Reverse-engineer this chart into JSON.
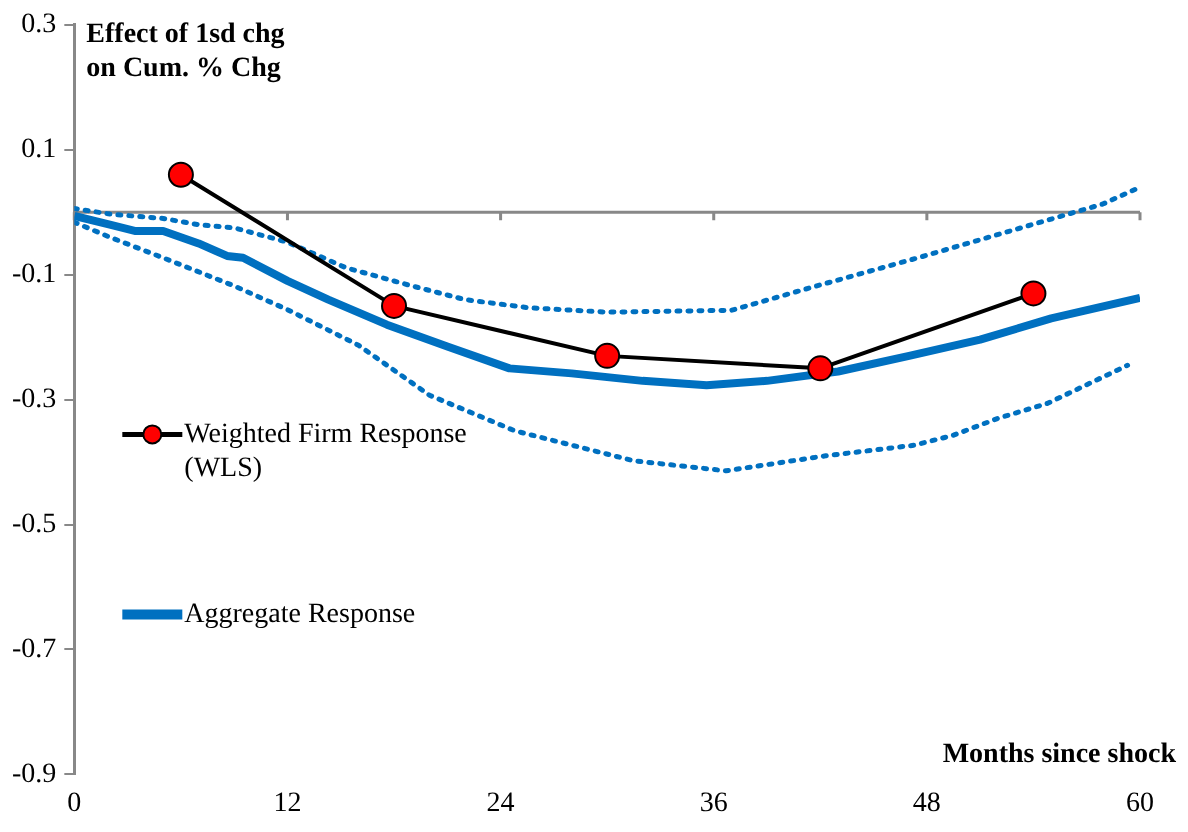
{
  "chart_data": {
    "type": "line",
    "ylabel": "Effect of 1sd chg on Cum. % Chg",
    "xlabel": "Months since shock",
    "xlim": [
      0,
      60
    ],
    "xticks": [
      0,
      12,
      24,
      36,
      48,
      60
    ],
    "ylim": [
      -0.9,
      0.3
    ],
    "yticks": [
      0.3,
      0.1,
      -0.1,
      -0.3,
      -0.5,
      -0.7,
      -0.9
    ],
    "grid": false,
    "legend": "bottom left",
    "ref_lines": [
      {
        "axis": "y",
        "value": 0,
        "color": "#888888"
      }
    ],
    "series": [
      {
        "name": "Weighted Firm Response (WLS)",
        "color": "#000000",
        "colors": [
          "#ff0000",
          "#ff0000",
          "#ff0000",
          "#ff0000",
          "#ff0000"
        ],
        "marker": "circle",
        "line_style": "solid",
        "x": [
          6,
          18,
          30,
          42,
          54
        ],
        "values": [
          0.06,
          -0.15,
          -0.23,
          -0.25,
          -0.13
        ]
      },
      {
        "name": "Aggregate Response",
        "color": "#0070c0",
        "marker": "none",
        "line_style": "solid",
        "x": [
          0,
          2,
          3.4,
          5,
          7,
          8.6,
          9.5,
          12,
          14.3,
          17.6,
          21,
          24.5,
          28,
          32,
          35.6,
          39,
          43,
          47,
          51,
          55,
          60
        ],
        "values": [
          -0.006,
          -0.02,
          -0.03,
          -0.03,
          -0.05,
          -0.07,
          -0.073,
          -0.11,
          -0.14,
          -0.18,
          -0.215,
          -0.25,
          -0.258,
          -0.27,
          -0.277,
          -0.27,
          -0.255,
          -0.23,
          -0.204,
          -0.17,
          -0.137
        ]
      },
      {
        "color": "#0070c0",
        "marker": "none",
        "line_style": "dotted",
        "x": [
          0,
          2,
          5,
          7,
          9,
          12,
          15.3,
          19,
          22,
          25.6,
          30,
          37,
          41.8,
          47.5,
          53.3,
          57.9,
          60
        ],
        "values": [
          0.006,
          -0.003,
          -0.01,
          -0.02,
          -0.025,
          -0.048,
          -0.089,
          -0.118,
          -0.14,
          -0.153,
          -0.16,
          -0.157,
          -0.118,
          -0.073,
          -0.025,
          0.013,
          0.04
        ]
      },
      {
        "color": "#0070c0",
        "marker": "none",
        "line_style": "dotted",
        "x": [
          0,
          2,
          5,
          9,
          12,
          16,
          20,
          24.8,
          31.5,
          36.7,
          42.3,
          47.3,
          49.5,
          52,
          54.8,
          59.3
        ],
        "values": [
          -0.016,
          -0.04,
          -0.073,
          -0.118,
          -0.156,
          -0.213,
          -0.293,
          -0.35,
          -0.398,
          -0.414,
          -0.39,
          -0.373,
          -0.357,
          -0.33,
          -0.306,
          -0.245
        ]
      }
    ]
  }
}
